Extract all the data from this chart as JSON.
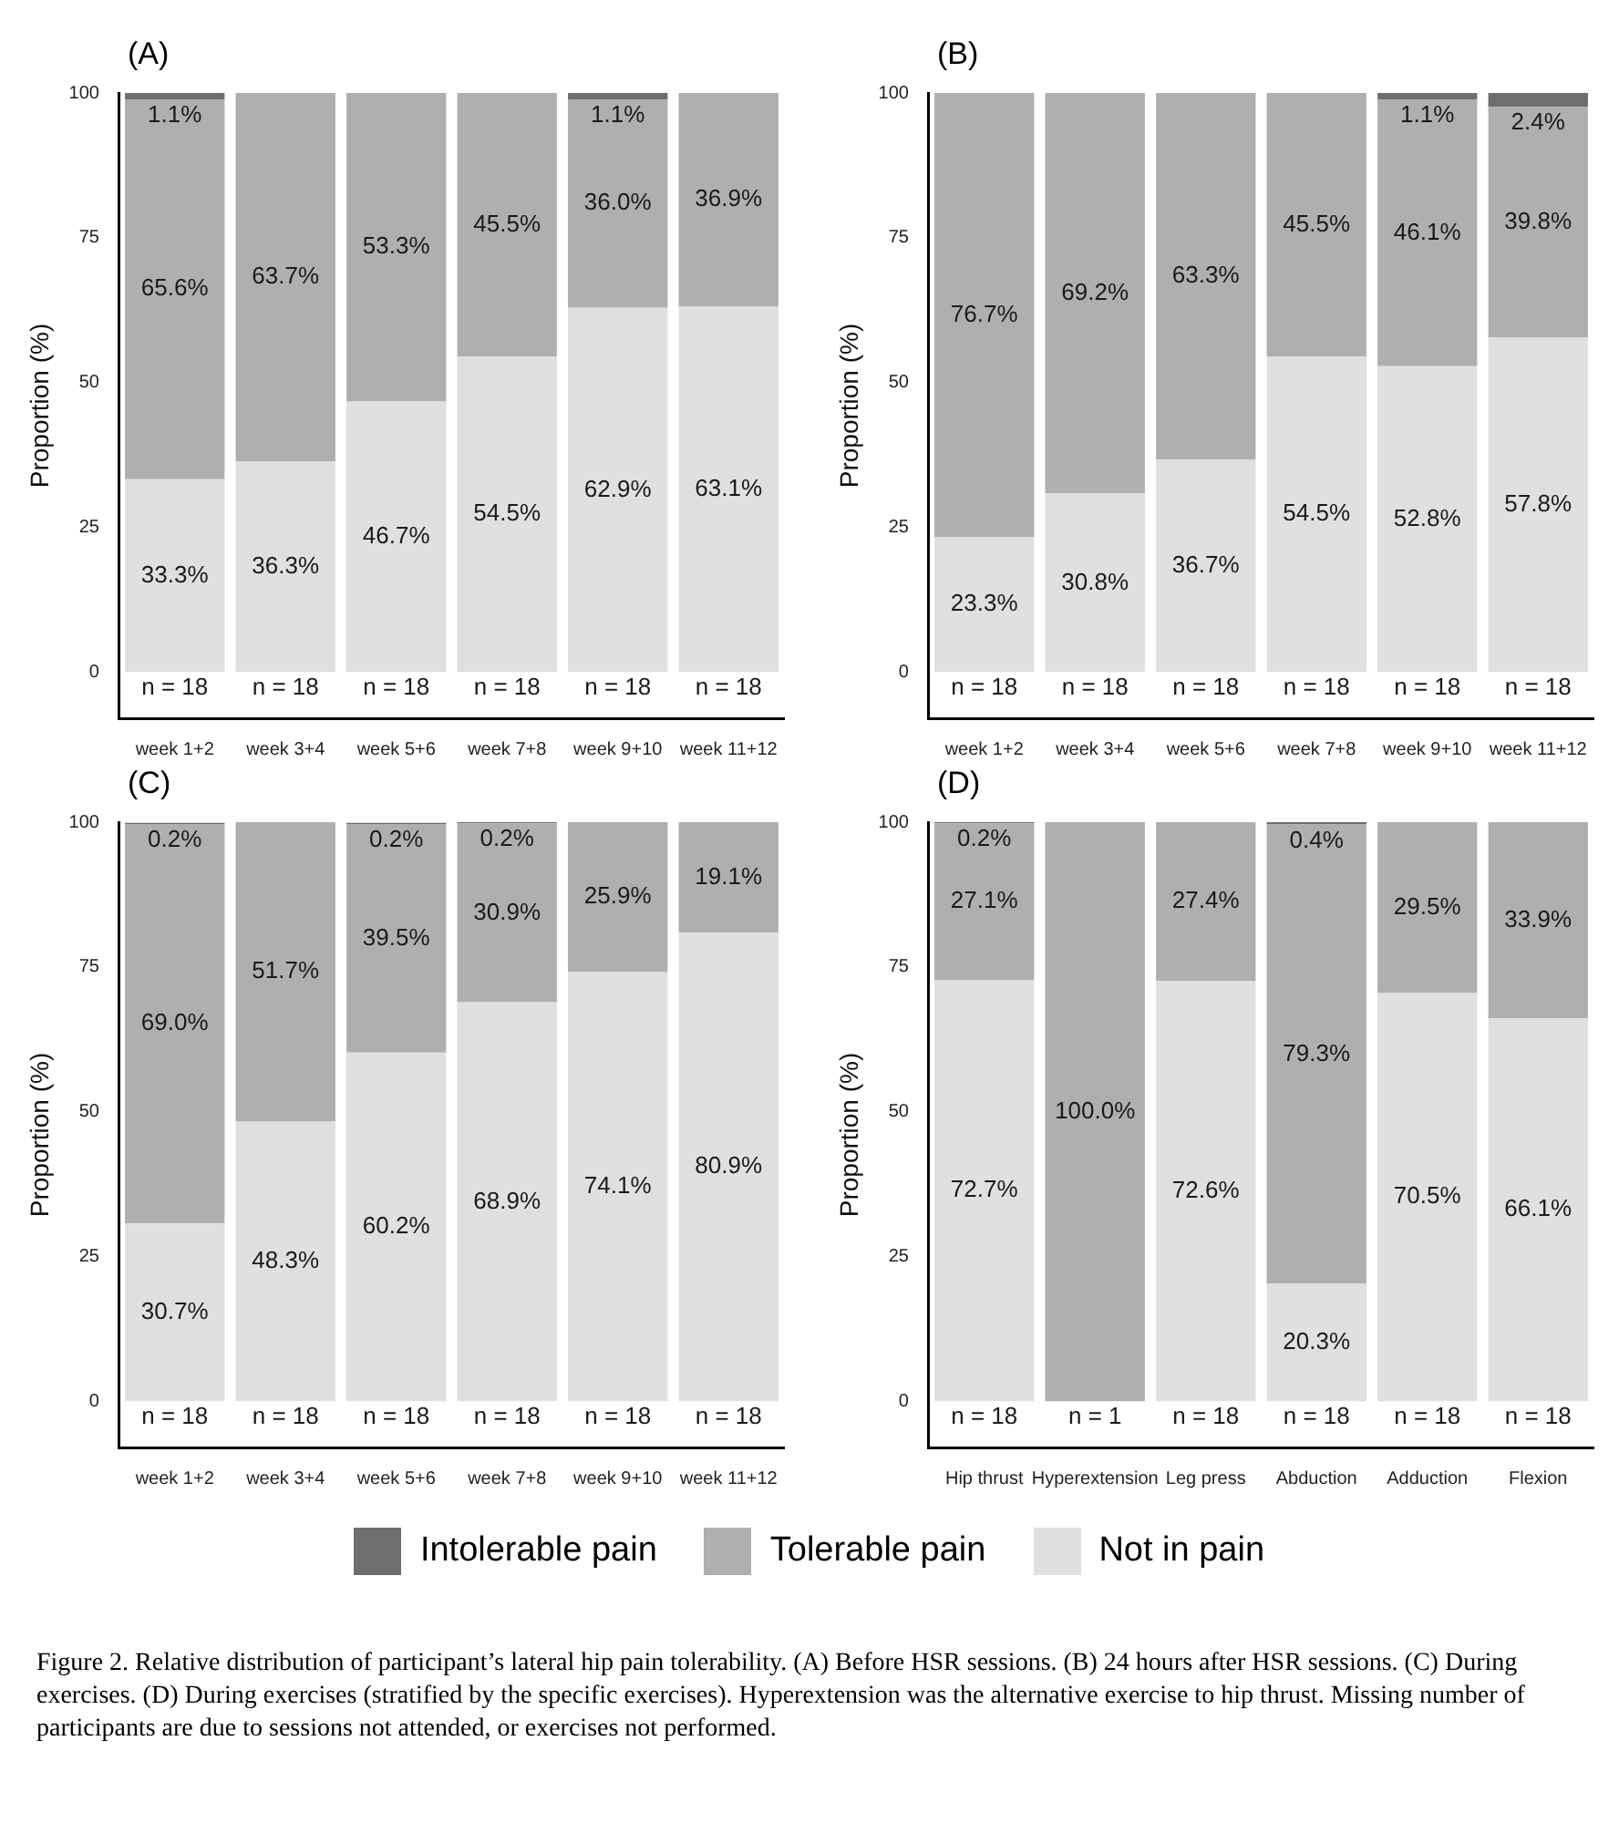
{
  "chart_data": [
    {
      "type": "bar",
      "title": "(A)",
      "ylabel": "Proportion (%)",
      "stacked": true,
      "legend": "bottom",
      "grid": false,
      "categories": [
        "week 1+2",
        "week 3+4",
        "week 5+6",
        "week 7+8",
        "week 9+10",
        "week 11+12"
      ],
      "ylim": [
        -8,
        100
      ],
      "yticks": [
        0,
        25,
        50,
        75,
        100
      ],
      "series": [
        {
          "name": "Not in pain",
          "color": "#e0e0e0",
          "values": [
            33.3,
            36.3,
            46.7,
            54.5,
            62.9,
            63.1
          ],
          "value_labels": [
            "33.3%",
            "36.3%",
            "46.7%",
            "54.5%",
            "62.9%",
            "63.1%"
          ]
        },
        {
          "name": "Tolerable pain",
          "color": "#afafaf",
          "values": [
            65.6,
            63.7,
            53.3,
            45.5,
            36.0,
            36.9
          ],
          "value_labels": [
            "65.6%",
            "63.7%",
            "53.3%",
            "45.5%",
            "36.0%",
            "36.9%"
          ]
        },
        {
          "name": "Intolerable pain",
          "color": "#6e6e6e",
          "values": [
            1.1,
            null,
            null,
            null,
            1.1,
            null
          ],
          "value_labels": [
            "1.1%",
            null,
            null,
            null,
            "1.1%",
            null
          ]
        }
      ],
      "annotations": [
        "n = 18",
        "n = 18",
        "n = 18",
        "n = 18",
        "n = 18",
        "n = 18"
      ]
    },
    {
      "type": "bar",
      "title": "(B)",
      "ylabel": "Proportion (%)",
      "stacked": true,
      "grid": false,
      "categories": [
        "week 1+2",
        "week 3+4",
        "week 5+6",
        "week 7+8",
        "week 9+10",
        "week 11+12"
      ],
      "ylim": [
        -8,
        100
      ],
      "yticks": [
        0,
        25,
        50,
        75,
        100
      ],
      "series": [
        {
          "color": "#e0e0e0",
          "values": [
            23.3,
            30.8,
            36.7,
            54.5,
            52.8,
            57.8
          ],
          "value_labels": [
            "23.3%",
            "30.8%",
            "36.7%",
            "54.5%",
            "52.8%",
            "57.8%"
          ]
        },
        {
          "color": "#afafaf",
          "values": [
            76.7,
            69.2,
            63.3,
            45.5,
            46.1,
            39.8
          ],
          "value_labels": [
            "76.7%",
            "69.2%",
            "63.3%",
            "45.5%",
            "46.1%",
            "39.8%"
          ]
        },
        {
          "color": "#6e6e6e",
          "values": [
            null,
            null,
            null,
            null,
            1.1,
            2.4
          ],
          "value_labels": [
            null,
            null,
            null,
            null,
            "1.1%",
            "2.4%"
          ]
        }
      ],
      "annotations": [
        "n = 18",
        "n = 18",
        "n = 18",
        "n = 18",
        "n = 18",
        "n = 18"
      ]
    },
    {
      "type": "bar",
      "title": "(C)",
      "ylabel": "Proportion (%)",
      "stacked": true,
      "grid": false,
      "categories": [
        "week 1+2",
        "week 3+4",
        "week 5+6",
        "week 7+8",
        "week 9+10",
        "week 11+12"
      ],
      "ylim": [
        -8,
        100
      ],
      "yticks": [
        0,
        25,
        50,
        75,
        100
      ],
      "series": [
        {
          "color": "#e0e0e0",
          "values": [
            30.7,
            48.3,
            60.2,
            68.9,
            74.1,
            80.9
          ],
          "value_labels": [
            "30.7%",
            "48.3%",
            "60.2%",
            "68.9%",
            "74.1%",
            "80.9%"
          ]
        },
        {
          "color": "#afafaf",
          "values": [
            69.0,
            51.7,
            39.5,
            30.9,
            25.9,
            19.1
          ],
          "value_labels": [
            "69.0%",
            "51.7%",
            "39.5%",
            "30.9%",
            "25.9%",
            "19.1%"
          ]
        },
        {
          "color": "#6e6e6e",
          "values": [
            0.2,
            null,
            0.2,
            0.2,
            null,
            null
          ],
          "value_labels": [
            "0.2%",
            null,
            "0.2%",
            "0.2%",
            null,
            null
          ]
        }
      ],
      "annotations": [
        "n = 18",
        "n = 18",
        "n = 18",
        "n = 18",
        "n = 18",
        "n = 18"
      ]
    },
    {
      "type": "bar",
      "title": "(D)",
      "ylabel": "Proportion (%)",
      "stacked": true,
      "grid": false,
      "categories": [
        "Hip thrust",
        "Hyperextension",
        "Leg press",
        "Abduction",
        "Adduction",
        "Flexion"
      ],
      "ylim": [
        -8,
        100
      ],
      "yticks": [
        0,
        25,
        50,
        75,
        100
      ],
      "series": [
        {
          "color": "#e0e0e0",
          "values": [
            72.7,
            null,
            72.6,
            20.3,
            70.5,
            66.1
          ],
          "value_labels": [
            "72.7%",
            null,
            "72.6%",
            "20.3%",
            "70.5%",
            "66.1%"
          ]
        },
        {
          "color": "#afafaf",
          "values": [
            27.1,
            100.0,
            27.4,
            79.3,
            29.5,
            33.9
          ],
          "value_labels": [
            "27.1%",
            "100.0%",
            "27.4%",
            "79.3%",
            "29.5%",
            "33.9%"
          ]
        },
        {
          "color": "#6e6e6e",
          "values": [
            0.2,
            null,
            null,
            0.4,
            null,
            null
          ],
          "value_labels": [
            "0.2%",
            null,
            null,
            "0.4%",
            null,
            null
          ]
        }
      ],
      "annotations": [
        "n = 18",
        "n = 1",
        "n = 18",
        "n = 18",
        "n = 18",
        "n = 18",
        "Figure 2. Relative distribution of participant’s lateral hip pain tolerability. (A) Before HSR sessions. (B) 24 hours after HSR sessions. (C) During exercises. (D) During exercises (stratified by the specific exercises). Hyperextension was the alternative exercise to hip thrust. Missing number of participants are due to sessions not attended, or exercises not performed."
      ]
    }
  ]
}
